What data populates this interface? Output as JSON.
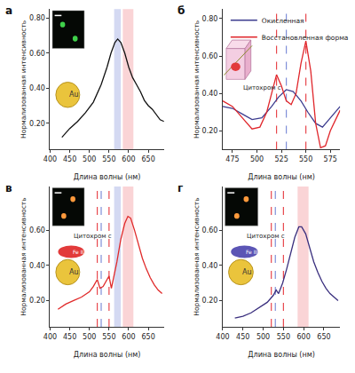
{
  "chart_data": [
    {
      "type": "line",
      "title": "а",
      "x_label": "Длина волны (нм)",
      "y_label": "Нормализованная интенсивность",
      "xlim": [
        400,
        690
      ],
      "xticks": [
        400,
        450,
        500,
        550,
        600,
        650
      ],
      "ylim": [
        0.05,
        0.85
      ],
      "yticks": [
        {
          "value": 0.2,
          "label": "0.20"
        },
        {
          "value": 0.4,
          "label": "0.40"
        },
        {
          "value": 0.6,
          "label": "0.60"
        },
        {
          "value": 0.8,
          "label": "0.80"
        }
      ],
      "grid": false,
      "series": [
        {
          "color": "#111111",
          "x": [
            430,
            450,
            470,
            490,
            510,
            530,
            545,
            555,
            565,
            572,
            580,
            590,
            600,
            610,
            620,
            630,
            640,
            650,
            660,
            670,
            680,
            690
          ],
          "values": [
            0.12,
            0.17,
            0.21,
            0.26,
            0.32,
            0.42,
            0.52,
            0.6,
            0.66,
            0.68,
            0.66,
            0.6,
            0.52,
            0.46,
            0.42,
            0.38,
            0.33,
            0.3,
            0.28,
            0.25,
            0.22,
            0.21
          ]
        }
      ],
      "bands": [
        {
          "from": 563,
          "to": 580,
          "color": "#aab4e6"
        },
        {
          "from": 585,
          "to": 612,
          "color": "#f5a9ae"
        }
      ],
      "inset": {
        "particle": "Au"
      }
    },
    {
      "type": "line",
      "title": "б",
      "x_label": "Длина волны (нм)",
      "y_label": "Нормализованная интенсивность",
      "xlim": [
        465,
        585
      ],
      "xticks": [
        475,
        500,
        525,
        550,
        575
      ],
      "ylim": [
        0.1,
        0.85
      ],
      "yticks": [
        {
          "value": 0.2,
          "label": "0.20"
        },
        {
          "value": 0.4,
          "label": "0.40"
        },
        {
          "value": 0.6,
          "label": "0.60"
        },
        {
          "value": 0.8,
          "label": "0.80"
        }
      ],
      "grid": false,
      "legend": "upper left",
      "series": [
        {
          "name": "Окисленная",
          "color": "#3d3d8f",
          "x": [
            465,
            475,
            485,
            495,
            505,
            515,
            522,
            530,
            537,
            545,
            552,
            560,
            567,
            575,
            585
          ],
          "values": [
            0.33,
            0.32,
            0.29,
            0.26,
            0.27,
            0.33,
            0.38,
            0.42,
            0.41,
            0.36,
            0.3,
            0.24,
            0.22,
            0.27,
            0.33
          ]
        },
        {
          "name": "Восстановленная форма",
          "color": "#e0262b",
          "x": [
            465,
            475,
            485,
            495,
            503,
            510,
            515,
            520,
            525,
            530,
            535,
            540,
            545,
            550,
            555,
            560,
            565,
            570,
            575,
            585
          ],
          "values": [
            0.36,
            0.33,
            0.27,
            0.21,
            0.22,
            0.3,
            0.4,
            0.5,
            0.44,
            0.36,
            0.34,
            0.4,
            0.56,
            0.68,
            0.52,
            0.24,
            0.11,
            0.12,
            0.2,
            0.31
          ]
        }
      ],
      "reference_lines": [
        {
          "x": 520,
          "color": "#e8474c"
        },
        {
          "x": 530,
          "color": "#7f8fd8"
        },
        {
          "x": 550,
          "color": "#e8474c"
        }
      ],
      "inset": {
        "protein": "Цитохром c",
        "color": "#e23a3a"
      }
    },
    {
      "type": "line",
      "title": "в",
      "x_label": "Длина волны (нм)",
      "y_label": "Нормализованная интенсивность",
      "xlim": [
        400,
        690
      ],
      "xticks": [
        400,
        450,
        500,
        550,
        600,
        650
      ],
      "ylim": [
        0.05,
        0.85
      ],
      "yticks": [
        {
          "value": 0.2,
          "label": "0.20"
        },
        {
          "value": 0.4,
          "label": "0.40"
        },
        {
          "value": 0.6,
          "label": "0.60"
        }
      ],
      "grid": false,
      "series": [
        {
          "color": "#e02a2a",
          "x": [
            420,
            440,
            460,
            480,
            500,
            510,
            520,
            527,
            535,
            545,
            550,
            556,
            562,
            570,
            580,
            590,
            598,
            605,
            615,
            625,
            635,
            645,
            655,
            665,
            675,
            685
          ],
          "values": [
            0.15,
            0.18,
            0.2,
            0.22,
            0.25,
            0.28,
            0.32,
            0.27,
            0.28,
            0.32,
            0.34,
            0.27,
            0.33,
            0.42,
            0.55,
            0.64,
            0.68,
            0.67,
            0.6,
            0.52,
            0.44,
            0.38,
            0.33,
            0.29,
            0.26,
            0.24
          ]
        }
      ],
      "bands": [
        {
          "from": 563,
          "to": 580,
          "color": "#aab4e6"
        },
        {
          "from": 585,
          "to": 612,
          "color": "#f5a9ae"
        }
      ],
      "reference_lines": [
        {
          "x": 520,
          "color": "#e8474c"
        },
        {
          "x": 530,
          "color": "#7f8fd8"
        },
        {
          "x": 550,
          "color": "#e8474c"
        }
      ],
      "inset": {
        "particle": "Au",
        "protein": "Цитохром c",
        "iron": "Fe II",
        "color": "#e23a3a"
      }
    },
    {
      "type": "line",
      "title": "г",
      "x_label": "Длина волны (нм)",
      "y_label": "Нормализованная интенсивность",
      "xlim": [
        400,
        690
      ],
      "xticks": [
        400,
        450,
        500,
        550,
        600,
        650
      ],
      "ylim": [
        0.05,
        0.85
      ],
      "yticks": [
        {
          "value": 0.2,
          "label": "0.20"
        },
        {
          "value": 0.4,
          "label": "0.40"
        },
        {
          "value": 0.6,
          "label": "0.60"
        }
      ],
      "grid": false,
      "series": [
        {
          "color": "#3a2f7e",
          "x": [
            430,
            450,
            470,
            490,
            510,
            525,
            532,
            538,
            548,
            558,
            568,
            578,
            588,
            595,
            605,
            615,
            625,
            635,
            645,
            655,
            665,
            675,
            685
          ],
          "values": [
            0.1,
            0.11,
            0.13,
            0.16,
            0.19,
            0.23,
            0.26,
            0.24,
            0.3,
            0.38,
            0.47,
            0.56,
            0.62,
            0.62,
            0.58,
            0.5,
            0.42,
            0.36,
            0.31,
            0.27,
            0.24,
            0.22,
            0.2
          ]
        }
      ],
      "bands": [
        {
          "from": 585,
          "to": 612,
          "color": "#f5a9ae"
        }
      ],
      "reference_lines": [
        {
          "x": 520,
          "color": "#e8474c"
        },
        {
          "x": 530,
          "color": "#7f8fd8"
        },
        {
          "x": 550,
          "color": "#e8474c"
        }
      ],
      "inset": {
        "particle": "Au",
        "protein": "Цитохром c",
        "iron": "Fe III",
        "color": "#5b55b5"
      }
    }
  ]
}
